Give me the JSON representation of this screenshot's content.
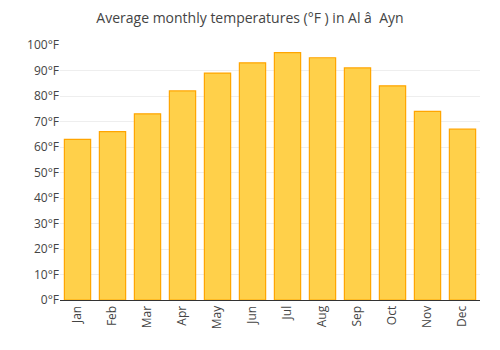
{
  "chart_data": {
    "type": "bar",
    "title": "Average monthly temperatures (°F ) in Al â  Ayn",
    "categories": [
      "Jan",
      "Feb",
      "Mar",
      "Apr",
      "May",
      "Jun",
      "Jul",
      "Aug",
      "Sep",
      "Oct",
      "Nov",
      "Dec"
    ],
    "values": [
      63,
      66,
      73,
      82,
      89,
      93,
      97,
      95,
      91,
      84,
      74,
      67
    ],
    "color": "#FFD04A",
    "ylim": [
      0,
      100
    ],
    "yticks": [
      {
        "value": 0,
        "label": "0°F"
      },
      {
        "value": 10,
        "label": "10°F"
      },
      {
        "value": 20,
        "label": "20°F"
      },
      {
        "value": 30,
        "label": "30°F"
      },
      {
        "value": 40,
        "label": "40°F"
      },
      {
        "value": 50,
        "label": "50°F"
      },
      {
        "value": 60,
        "label": "60°F"
      },
      {
        "value": 70,
        "label": "70°F"
      },
      {
        "value": 80,
        "label": "80°F"
      },
      {
        "value": 90,
        "label": "90°F"
      },
      {
        "value": 100,
        "label": "100°F"
      }
    ],
    "grid": true
  }
}
